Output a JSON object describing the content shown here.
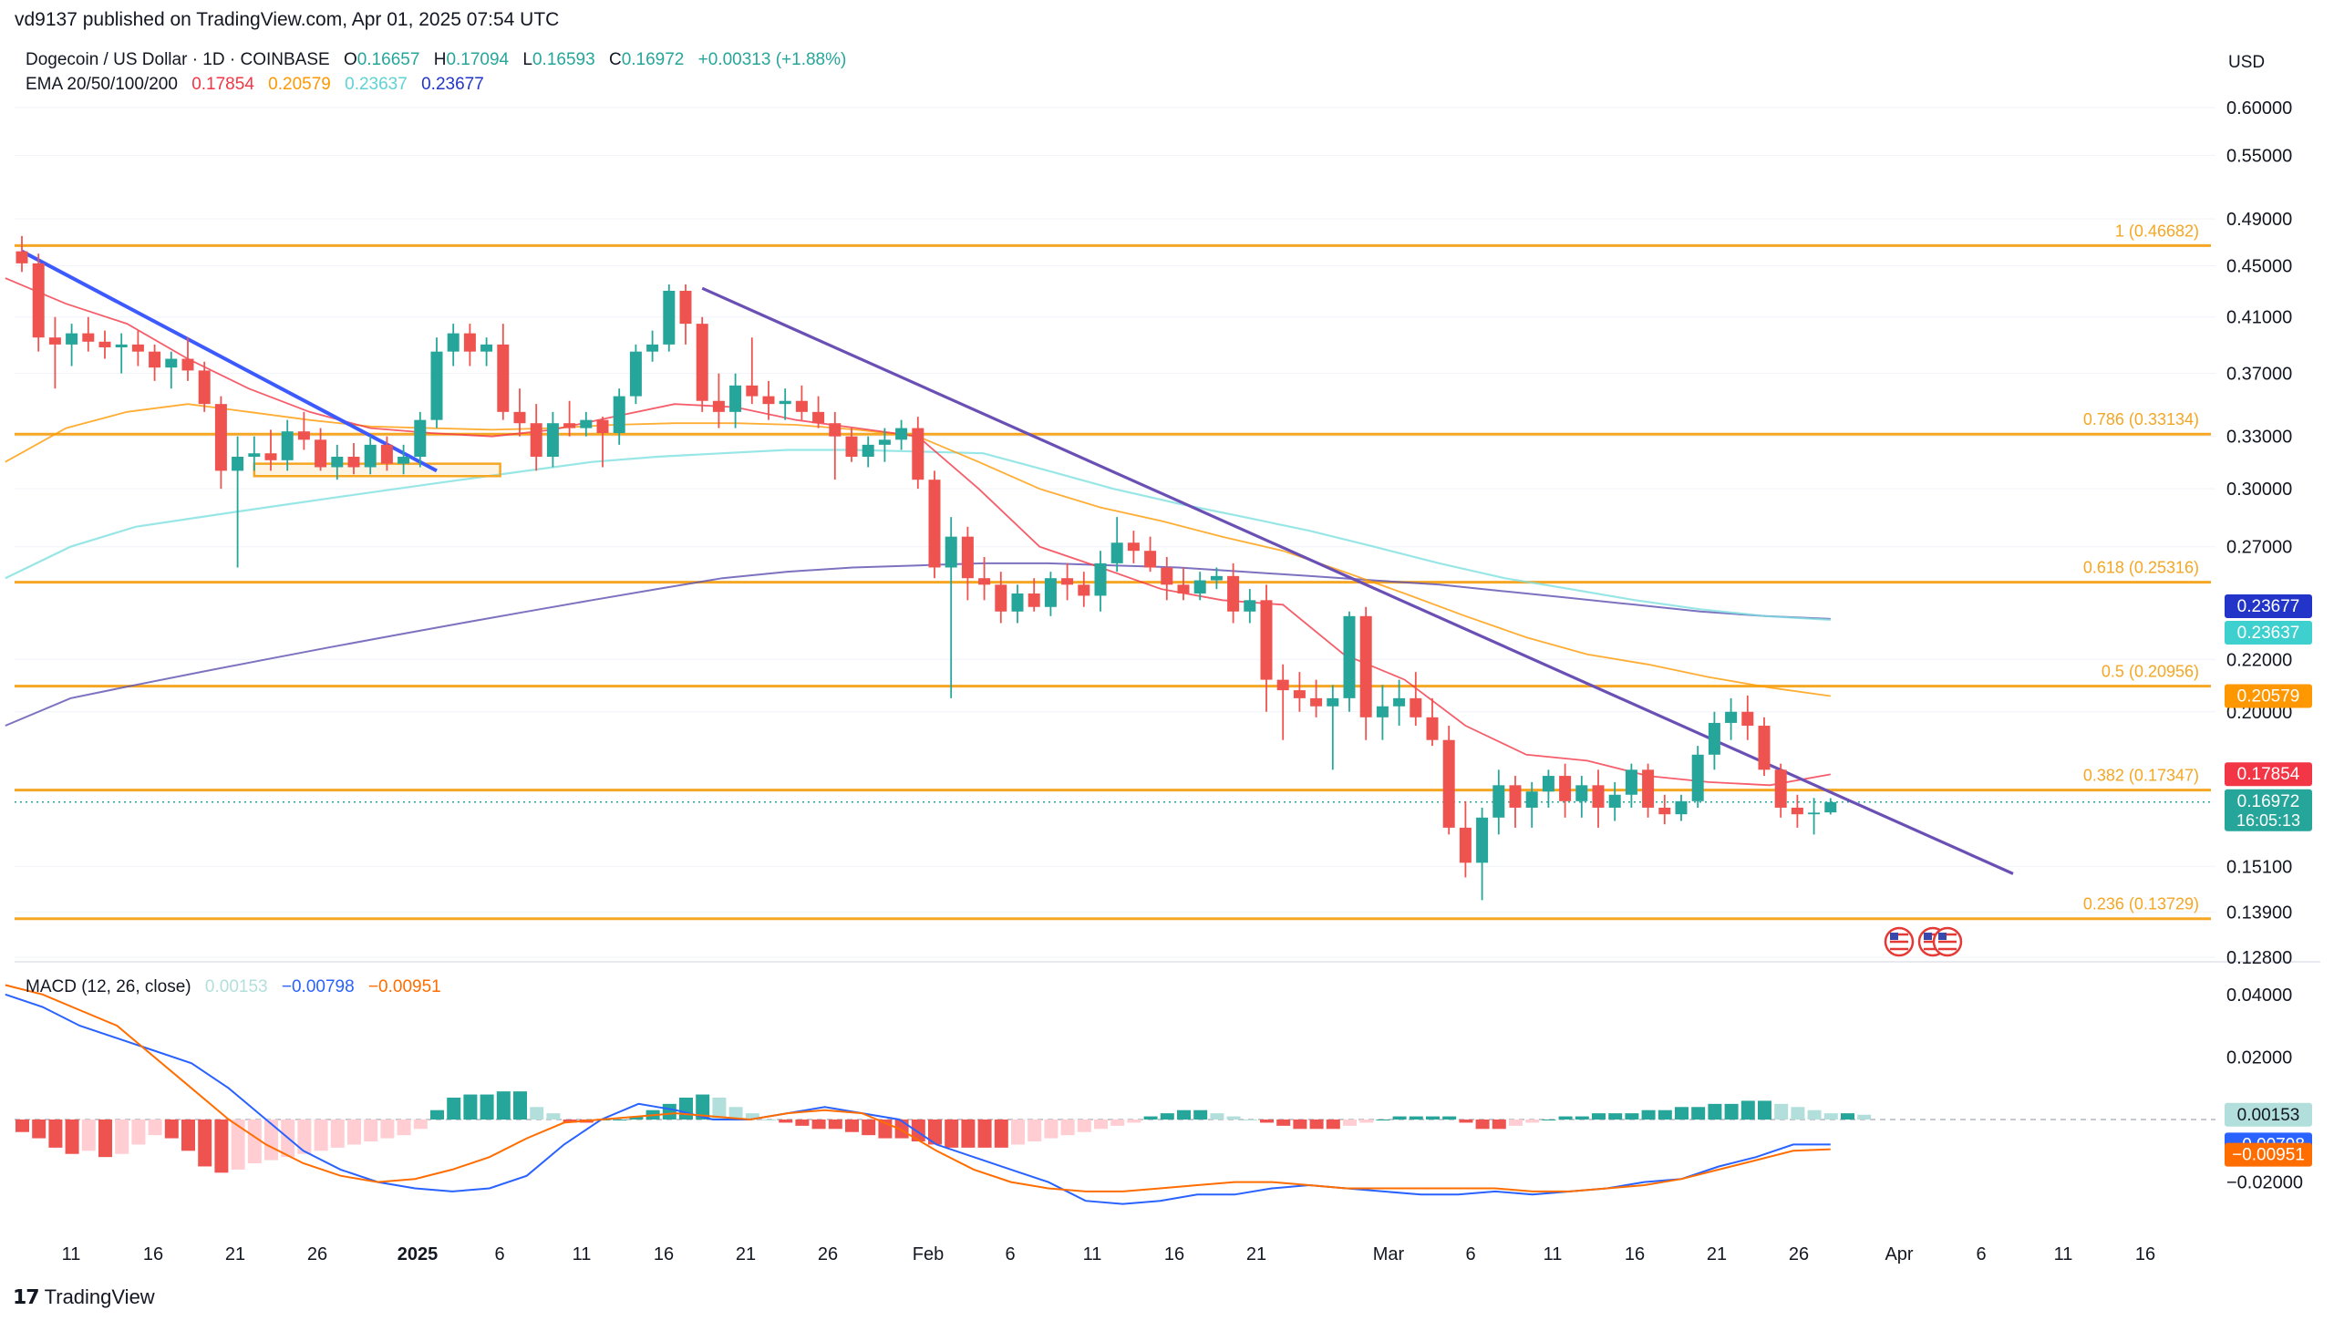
{
  "published": "vd9137 published on TradingView.com, Apr 01, 2025 07:54 UTC",
  "symbol": {
    "title": "Dogecoin / US Dollar · 1D · COINBASE",
    "o_label": "O",
    "o": "0.16657",
    "h_label": "H",
    "h": "0.17094",
    "l_label": "L",
    "l": "0.16593",
    "c_label": "C",
    "c": "0.16972",
    "change": "+0.00313 (+1.88%)"
  },
  "ema": {
    "label": "EMA 20/50/100/200",
    "v20": "0.17854",
    "v50": "0.20579",
    "v100": "0.23637",
    "v200": "0.23677"
  },
  "macd": {
    "label": "MACD (12, 26, close)",
    "hist": "0.00153",
    "macd": "−0.00798",
    "signal": "−0.00951"
  },
  "currency": "USD",
  "footer_brand": "TradingView",
  "colors": {
    "up": "#26a69a",
    "down": "#ef5350",
    "fib": "#f5a623",
    "ema20": "#f23645",
    "ema50": "#ff9800",
    "ema100": "#7fe0e0",
    "ema200": "#5b4fb0",
    "trend": "#6a4fb4",
    "trend_first": "#3d5afe",
    "macd": "#2962ff",
    "signal": "#ff6d00"
  },
  "chart_data": {
    "type": "candlestick",
    "timeframe": "1D",
    "y_scale": "log",
    "y_ticks": [
      "0.60000",
      "0.55000",
      "0.49000",
      "0.45000",
      "0.41000",
      "0.37000",
      "0.33000",
      "0.30000",
      "0.27000",
      "0.22000",
      "0.20000",
      "0.15100",
      "0.13900",
      "0.12800"
    ],
    "x_ticks": [
      "11",
      "16",
      "21",
      "26",
      "2025",
      "6",
      "11",
      "16",
      "21",
      "26",
      "Feb",
      "6",
      "11",
      "16",
      "21",
      "Mar",
      "6",
      "11",
      "16",
      "21",
      "26",
      "Apr",
      "6",
      "11",
      "16"
    ],
    "fib_levels": [
      {
        "label": "1 (0.46682)",
        "value": 0.46682
      },
      {
        "label": "0.786 (0.33134)",
        "value": 0.33134
      },
      {
        "label": "0.618 (0.25316)",
        "value": 0.25316
      },
      {
        "label": "0.5 (0.20956)",
        "value": 0.20956
      },
      {
        "label": "0.382 (0.17347)",
        "value": 0.17347
      },
      {
        "label": "0.236 (0.13729)",
        "value": 0.13729
      }
    ],
    "price_labels": [
      {
        "text": "0.23677",
        "color": "#2235c8",
        "value": 0.23677
      },
      {
        "text": "0.23637",
        "color": "#3ecfcf",
        "value": 0.23637
      },
      {
        "text": "0.20579",
        "color": "#ff9800",
        "value": 0.20579
      },
      {
        "text": "0.17854",
        "color": "#f23645",
        "value": 0.17854
      },
      {
        "text": "0.16972",
        "sub": "16:05:13",
        "color": "#26a69a",
        "value": 0.16972
      }
    ],
    "candles": [
      [
        0.462,
        0.475,
        0.445,
        0.452
      ],
      [
        0.452,
        0.46,
        0.385,
        0.395
      ],
      [
        0.395,
        0.41,
        0.36,
        0.39
      ],
      [
        0.39,
        0.405,
        0.375,
        0.398
      ],
      [
        0.398,
        0.41,
        0.385,
        0.392
      ],
      [
        0.392,
        0.4,
        0.38,
        0.388
      ],
      [
        0.388,
        0.398,
        0.37,
        0.39
      ],
      [
        0.39,
        0.4,
        0.375,
        0.385
      ],
      [
        0.385,
        0.39,
        0.365,
        0.374
      ],
      [
        0.374,
        0.385,
        0.36,
        0.38
      ],
      [
        0.38,
        0.395,
        0.365,
        0.372
      ],
      [
        0.372,
        0.378,
        0.345,
        0.35
      ],
      [
        0.35,
        0.355,
        0.3,
        0.31
      ],
      [
        0.31,
        0.33,
        0.26,
        0.318
      ],
      [
        0.318,
        0.33,
        0.31,
        0.32
      ],
      [
        0.32,
        0.334,
        0.31,
        0.316
      ],
      [
        0.316,
        0.34,
        0.31,
        0.333
      ],
      [
        0.333,
        0.345,
        0.322,
        0.328
      ],
      [
        0.328,
        0.335,
        0.31,
        0.312
      ],
      [
        0.312,
        0.325,
        0.305,
        0.318
      ],
      [
        0.318,
        0.326,
        0.308,
        0.312
      ],
      [
        0.312,
        0.33,
        0.308,
        0.325
      ],
      [
        0.325,
        0.33,
        0.31,
        0.314
      ],
      [
        0.314,
        0.325,
        0.308,
        0.318
      ],
      [
        0.318,
        0.345,
        0.312,
        0.34
      ],
      [
        0.34,
        0.395,
        0.335,
        0.385
      ],
      [
        0.385,
        0.405,
        0.375,
        0.398
      ],
      [
        0.398,
        0.405,
        0.375,
        0.385
      ],
      [
        0.385,
        0.395,
        0.375,
        0.39
      ],
      [
        0.39,
        0.405,
        0.34,
        0.345
      ],
      [
        0.345,
        0.36,
        0.33,
        0.338
      ],
      [
        0.338,
        0.35,
        0.31,
        0.318
      ],
      [
        0.318,
        0.345,
        0.312,
        0.338
      ],
      [
        0.338,
        0.352,
        0.33,
        0.335
      ],
      [
        0.335,
        0.345,
        0.33,
        0.34
      ],
      [
        0.34,
        0.342,
        0.312,
        0.332
      ],
      [
        0.332,
        0.36,
        0.325,
        0.355
      ],
      [
        0.355,
        0.39,
        0.35,
        0.385
      ],
      [
        0.385,
        0.4,
        0.378,
        0.39
      ],
      [
        0.39,
        0.435,
        0.385,
        0.43
      ],
      [
        0.43,
        0.435,
        0.39,
        0.405
      ],
      [
        0.405,
        0.41,
        0.345,
        0.352
      ],
      [
        0.352,
        0.37,
        0.335,
        0.345
      ],
      [
        0.345,
        0.37,
        0.335,
        0.362
      ],
      [
        0.362,
        0.395,
        0.35,
        0.355
      ],
      [
        0.355,
        0.365,
        0.34,
        0.35
      ],
      [
        0.35,
        0.36,
        0.34,
        0.352
      ],
      [
        0.352,
        0.362,
        0.34,
        0.345
      ],
      [
        0.345,
        0.355,
        0.335,
        0.338
      ],
      [
        0.338,
        0.345,
        0.305,
        0.33
      ],
      [
        0.33,
        0.335,
        0.315,
        0.318
      ],
      [
        0.318,
        0.33,
        0.312,
        0.325
      ],
      [
        0.325,
        0.335,
        0.315,
        0.328
      ],
      [
        0.328,
        0.34,
        0.322,
        0.335
      ],
      [
        0.335,
        0.342,
        0.3,
        0.305
      ],
      [
        0.305,
        0.31,
        0.255,
        0.26
      ],
      [
        0.26,
        0.285,
        0.205,
        0.275
      ],
      [
        0.275,
        0.28,
        0.245,
        0.255
      ],
      [
        0.255,
        0.265,
        0.245,
        0.252
      ],
      [
        0.252,
        0.258,
        0.235,
        0.24
      ],
      [
        0.24,
        0.252,
        0.235,
        0.248
      ],
      [
        0.248,
        0.255,
        0.24,
        0.242
      ],
      [
        0.242,
        0.258,
        0.238,
        0.255
      ],
      [
        0.255,
        0.262,
        0.245,
        0.252
      ],
      [
        0.252,
        0.258,
        0.242,
        0.247
      ],
      [
        0.247,
        0.268,
        0.24,
        0.262
      ],
      [
        0.262,
        0.285,
        0.258,
        0.272
      ],
      [
        0.272,
        0.278,
        0.262,
        0.268
      ],
      [
        0.268,
        0.275,
        0.258,
        0.26
      ],
      [
        0.26,
        0.265,
        0.245,
        0.252
      ],
      [
        0.252,
        0.26,
        0.245,
        0.248
      ],
      [
        0.248,
        0.258,
        0.245,
        0.254
      ],
      [
        0.254,
        0.26,
        0.25,
        0.256
      ],
      [
        0.256,
        0.262,
        0.235,
        0.24
      ],
      [
        0.24,
        0.25,
        0.235,
        0.245
      ],
      [
        0.245,
        0.252,
        0.2,
        0.212
      ],
      [
        0.212,
        0.218,
        0.19,
        0.208
      ],
      [
        0.208,
        0.215,
        0.2,
        0.205
      ],
      [
        0.205,
        0.212,
        0.198,
        0.202
      ],
      [
        0.202,
        0.21,
        0.18,
        0.205
      ],
      [
        0.205,
        0.24,
        0.2,
        0.238
      ],
      [
        0.238,
        0.242,
        0.19,
        0.198
      ],
      [
        0.198,
        0.21,
        0.19,
        0.202
      ],
      [
        0.202,
        0.212,
        0.195,
        0.205
      ],
      [
        0.205,
        0.215,
        0.195,
        0.198
      ],
      [
        0.198,
        0.205,
        0.188,
        0.19
      ],
      [
        0.19,
        0.195,
        0.16,
        0.162
      ],
      [
        0.162,
        0.17,
        0.148,
        0.152
      ],
      [
        0.152,
        0.168,
        0.142,
        0.165
      ],
      [
        0.165,
        0.18,
        0.16,
        0.175
      ],
      [
        0.175,
        0.178,
        0.162,
        0.168
      ],
      [
        0.168,
        0.176,
        0.162,
        0.173
      ],
      [
        0.173,
        0.18,
        0.168,
        0.178
      ],
      [
        0.178,
        0.182,
        0.165,
        0.17
      ],
      [
        0.17,
        0.178,
        0.165,
        0.175
      ],
      [
        0.175,
        0.18,
        0.162,
        0.168
      ],
      [
        0.168,
        0.176,
        0.164,
        0.172
      ],
      [
        0.172,
        0.182,
        0.168,
        0.18
      ],
      [
        0.18,
        0.182,
        0.165,
        0.168
      ],
      [
        0.168,
        0.172,
        0.163,
        0.166
      ],
      [
        0.166,
        0.172,
        0.164,
        0.17
      ],
      [
        0.17,
        0.188,
        0.168,
        0.185
      ],
      [
        0.185,
        0.2,
        0.18,
        0.196
      ],
      [
        0.196,
        0.205,
        0.19,
        0.2
      ],
      [
        0.2,
        0.206,
        0.19,
        0.195
      ],
      [
        0.195,
        0.198,
        0.178,
        0.18
      ],
      [
        0.18,
        0.182,
        0.165,
        0.168
      ],
      [
        0.168,
        0.172,
        0.162,
        0.166
      ],
      [
        0.166,
        0.171,
        0.16,
        0.1665
      ],
      [
        0.16657,
        0.17094,
        0.16593,
        0.16972
      ]
    ],
    "ema20": [
      0.44,
      0.42,
      0.405,
      0.38,
      0.36,
      0.345,
      0.335,
      0.332,
      0.33,
      0.334,
      0.342,
      0.35,
      0.348,
      0.34,
      0.335,
      0.33,
      0.3,
      0.27,
      0.26,
      0.25,
      0.245,
      0.243,
      0.222,
      0.212,
      0.195,
      0.185,
      0.183,
      0.178,
      0.176,
      0.175,
      0.1785
    ],
    "ema50": [
      0.315,
      0.335,
      0.345,
      0.35,
      0.345,
      0.34,
      0.336,
      0.335,
      0.334,
      0.335,
      0.337,
      0.338,
      0.338,
      0.337,
      0.334,
      0.33,
      0.315,
      0.3,
      0.29,
      0.283,
      0.275,
      0.268,
      0.258,
      0.248,
      0.238,
      0.229,
      0.222,
      0.218,
      0.213,
      0.209,
      0.2058
    ],
    "ema100": [
      0.255,
      0.27,
      0.28,
      0.285,
      0.29,
      0.295,
      0.3,
      0.305,
      0.31,
      0.315,
      0.318,
      0.32,
      0.322,
      0.322,
      0.321,
      0.32,
      0.31,
      0.3,
      0.292,
      0.285,
      0.278,
      0.27,
      0.262,
      0.255,
      0.25,
      0.245,
      0.241,
      0.238,
      0.2364
    ],
    "ema200": [
      0.195,
      0.205,
      0.21,
      0.215,
      0.22,
      0.225,
      0.23,
      0.235,
      0.24,
      0.245,
      0.25,
      0.255,
      0.258,
      0.26,
      0.261,
      0.262,
      0.262,
      0.261,
      0.26,
      0.258,
      0.256,
      0.254,
      0.252,
      0.249,
      0.246,
      0.243,
      0.24,
      0.238,
      0.2368
    ],
    "trendlines": [
      {
        "from": [
          0,
          0.462
        ],
        "to": [
          25,
          0.31
        ],
        "color": "#3d5afe"
      },
      {
        "from": [
          41,
          0.432
        ],
        "to": [
          120,
          0.149
        ],
        "color": "#6a4fb4"
      }
    ],
    "support_box": {
      "from_index": 14,
      "to_index": 28,
      "low": 0.307,
      "high": 0.314
    },
    "macd_ticks": [
      "0.04000",
      "0.02000",
      "−0.02000"
    ],
    "macd_hist": [
      -0.004,
      -0.006,
      -0.009,
      -0.011,
      -0.01,
      -0.012,
      -0.011,
      -0.008,
      -0.005,
      -0.006,
      -0.01,
      -0.015,
      -0.017,
      -0.016,
      -0.014,
      -0.013,
      -0.012,
      -0.011,
      -0.01,
      -0.009,
      -0.008,
      -0.007,
      -0.006,
      -0.005,
      -0.003,
      0.003,
      0.007,
      0.008,
      0.008,
      0.009,
      0.009,
      0.004,
      0.002,
      -0.001,
      -0.001,
      0,
      0,
      0.001,
      0.003,
      0.005,
      0.007,
      0.008,
      0.007,
      0.004,
      0.002,
      0,
      -0.001,
      -0.002,
      -0.003,
      -0.003,
      -0.004,
      -0.005,
      -0.006,
      -0.006,
      -0.007,
      -0.008,
      -0.009,
      -0.009,
      -0.009,
      -0.009,
      -0.008,
      -0.007,
      -0.006,
      -0.005,
      -0.004,
      -0.003,
      -0.002,
      -0.001,
      0.001,
      0.002,
      0.003,
      0.003,
      0.002,
      0.001,
      0,
      -0.001,
      -0.002,
      -0.003,
      -0.003,
      -0.003,
      -0.002,
      -0.001,
      0,
      0.001,
      0.001,
      0.001,
      0.001,
      -0.001,
      -0.003,
      -0.003,
      -0.002,
      -0.001,
      0,
      0.001,
      0.001,
      0.002,
      0.002,
      0.002,
      0.003,
      0.003,
      0.004,
      0.004,
      0.005,
      0.005,
      0.006,
      0.006,
      0.005,
      0.004,
      0.003,
      0.002,
      0.002,
      0.00153
    ],
    "macd_line": [
      0.04,
      0.036,
      0.03,
      0.026,
      0.022,
      0.018,
      0.01,
      0.0,
      -0.01,
      -0.016,
      -0.02,
      -0.022,
      -0.023,
      -0.022,
      -0.018,
      -0.008,
      0.0,
      0.005,
      0.003,
      0.0,
      0.0,
      0.002,
      0.004,
      0.002,
      0.0,
      -0.008,
      -0.012,
      -0.016,
      -0.02,
      -0.026,
      -0.027,
      -0.026,
      -0.024,
      -0.024,
      -0.022,
      -0.021,
      -0.022,
      -0.023,
      -0.024,
      -0.024,
      -0.023,
      -0.024,
      -0.023,
      -0.022,
      -0.02,
      -0.019,
      -0.015,
      -0.012,
      -0.008,
      -0.008
    ],
    "signal_line": [
      0.043,
      0.04,
      0.035,
      0.03,
      0.02,
      0.01,
      0.0,
      -0.008,
      -0.014,
      -0.018,
      -0.02,
      -0.019,
      -0.016,
      -0.012,
      -0.006,
      -0.001,
      0.0,
      0.001,
      0.002,
      0.001,
      0.0,
      0.002,
      0.003,
      0.002,
      -0.003,
      -0.01,
      -0.016,
      -0.02,
      -0.022,
      -0.023,
      -0.023,
      -0.022,
      -0.021,
      -0.02,
      -0.02,
      -0.021,
      -0.022,
      -0.022,
      -0.022,
      -0.022,
      -0.022,
      -0.023,
      -0.023,
      -0.022,
      -0.021,
      -0.019,
      -0.016,
      -0.013,
      -0.01,
      -0.0095
    ]
  }
}
